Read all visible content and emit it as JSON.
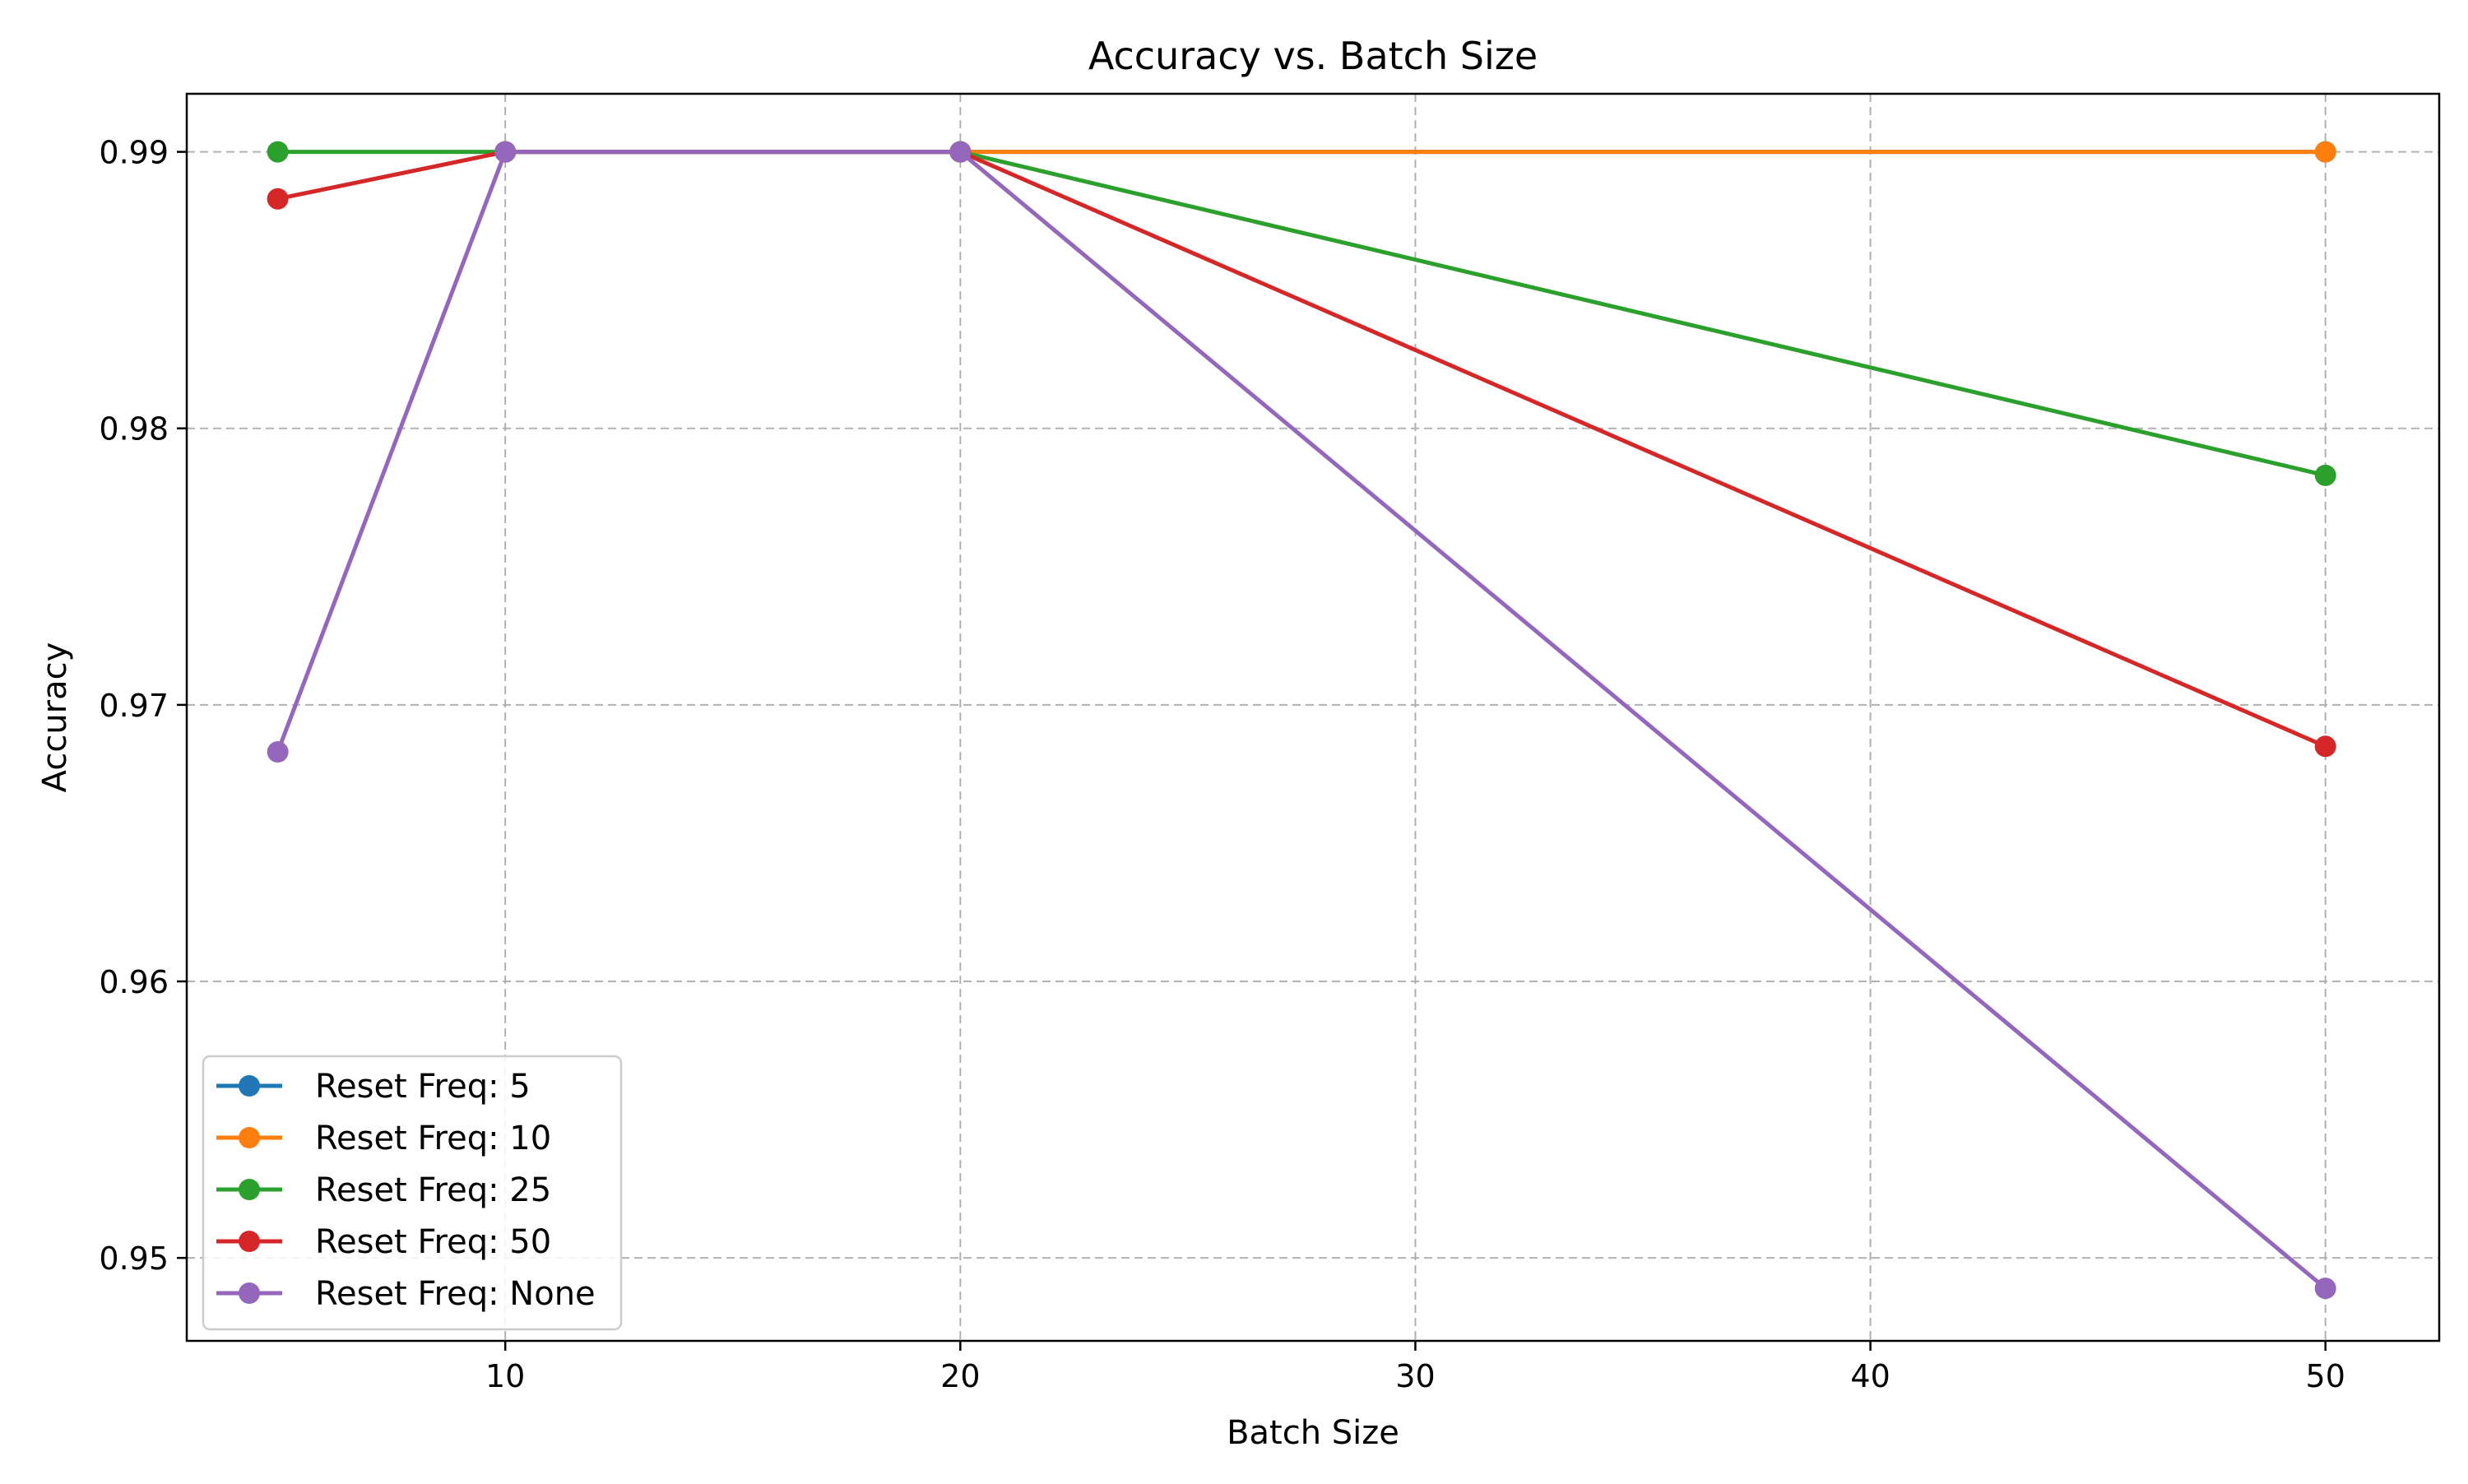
{
  "chart_data": {
    "type": "line",
    "title": "Accuracy vs. Batch Size",
    "xlabel": "Batch Size",
    "ylabel": "Accuracy",
    "xlim": [
      3,
      52.5
    ],
    "ylim": [
      0.947,
      0.9921
    ],
    "xticks": [
      10,
      20,
      30,
      40,
      50
    ],
    "xtick_labels": [
      "10",
      "20",
      "30",
      "40",
      "50"
    ],
    "yticks": [
      0.95,
      0.96,
      0.97,
      0.98,
      0.99
    ],
    "ytick_labels": [
      "0.95",
      "0.96",
      "0.97",
      "0.98",
      "0.99"
    ],
    "grid": true,
    "legend_position": "lower-left",
    "x": [
      5,
      10,
      20,
      50
    ],
    "series": [
      {
        "name": "Reset Freq: 5",
        "color": "#1f77b4",
        "values": [
          null,
          0.99,
          0.99,
          0.99
        ]
      },
      {
        "name": "Reset Freq: 10",
        "color": "#ff7f0e",
        "values": [
          null,
          0.99,
          0.99,
          0.99
        ]
      },
      {
        "name": "Reset Freq: 25",
        "color": "#2ca02c",
        "values": [
          0.99,
          0.99,
          0.99,
          0.9783
        ]
      },
      {
        "name": "Reset Freq: 50",
        "color": "#d62728",
        "values": [
          0.9883,
          0.99,
          0.99,
          0.9685
        ]
      },
      {
        "name": "Reset Freq: None",
        "color": "#9467bd",
        "values": [
          0.9683,
          0.99,
          0.99,
          0.9489
        ]
      }
    ]
  }
}
